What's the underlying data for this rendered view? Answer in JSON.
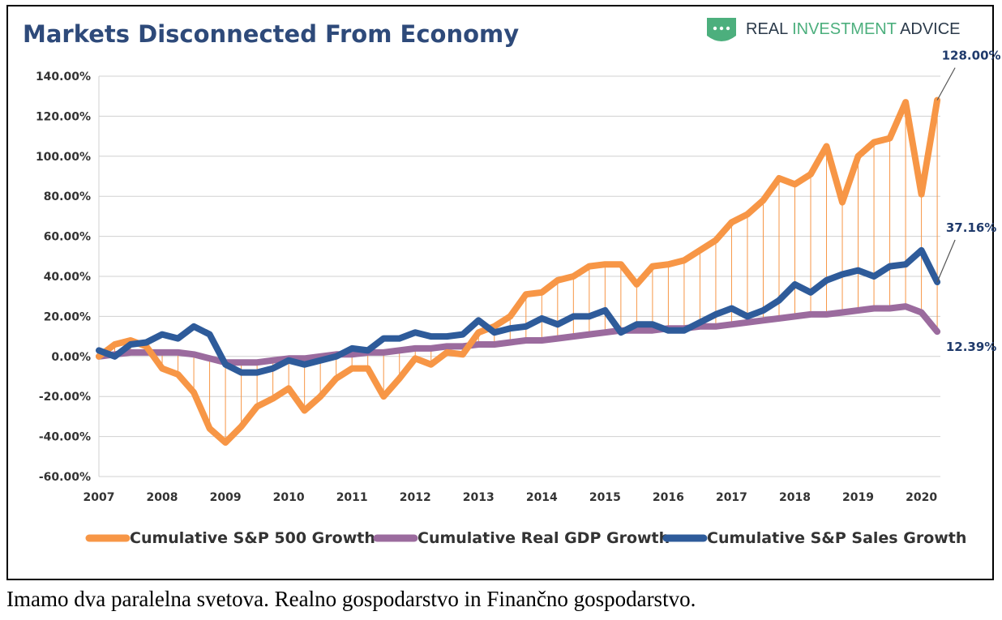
{
  "brand": {
    "name_part1": "REAL ",
    "name_part2": "INVESTMENT",
    "name_part3": " ADVICE",
    "logo_icon": "shield-dots-icon",
    "colors": {
      "dark": "#2b3a4a",
      "green": "#4caf7d"
    }
  },
  "caption": "Imamo dva paralelna svetova. Realno gospodarstvo in Finančno gospodarstvo.",
  "chart_data": {
    "type": "line",
    "title": "Markets Disconnected From Economy",
    "xlabel": "",
    "ylabel": "",
    "ylim": [
      -60,
      140
    ],
    "y_ticks": [
      "140.00%",
      "120.00%",
      "100.00%",
      "80.00%",
      "60.00%",
      "40.00%",
      "20.00%",
      "0.00%",
      "-20.00%",
      "-40.00%",
      "-60.00%"
    ],
    "x_range": [
      2007,
      2020.3
    ],
    "x_ticks": [
      "2007",
      "2008",
      "2009",
      "2010",
      "2011",
      "2012",
      "2013",
      "2014",
      "2015",
      "2016",
      "2017",
      "2018",
      "2019",
      "2020"
    ],
    "grid": true,
    "legend_position": "bottom",
    "annotations": [
      "128.00%",
      "37.16%",
      "12.39%"
    ],
    "series": [
      {
        "name": "Cumulative S&P 500 Growth",
        "color": "#f79646",
        "x": [
          2007,
          2007.25,
          2007.5,
          2007.75,
          2008,
          2008.25,
          2008.5,
          2008.75,
          2009,
          2009.25,
          2009.5,
          2009.75,
          2010,
          2010.25,
          2010.5,
          2010.75,
          2011,
          2011.25,
          2011.5,
          2011.75,
          2012,
          2012.25,
          2012.5,
          2012.75,
          2013,
          2013.25,
          2013.5,
          2013.75,
          2014,
          2014.25,
          2014.5,
          2014.75,
          2015,
          2015.25,
          2015.5,
          2015.75,
          2016,
          2016.25,
          2016.5,
          2016.75,
          2017,
          2017.25,
          2017.5,
          2017.75,
          2018,
          2018.25,
          2018.5,
          2018.75,
          2019,
          2019.25,
          2019.5,
          2019.75,
          2020,
          2020.25
        ],
        "values": [
          0,
          6,
          8,
          5,
          -6,
          -9,
          -18,
          -36,
          -43,
          -35,
          -25,
          -21,
          -16,
          -27,
          -20,
          -11,
          -6,
          -6,
          -20,
          -11,
          -1,
          -4,
          2,
          1,
          12,
          15,
          20,
          31,
          32,
          38,
          40,
          45,
          46,
          46,
          36,
          45,
          46,
          48,
          53,
          58,
          67,
          71,
          78,
          89,
          86,
          91,
          105,
          77,
          100,
          107,
          109,
          127,
          81,
          128
        ]
      },
      {
        "name": "Cumulative Real GDP Growth",
        "color": "#9b6b9e",
        "x": [
          2007,
          2007.25,
          2007.5,
          2007.75,
          2008,
          2008.25,
          2008.5,
          2008.75,
          2009,
          2009.25,
          2009.5,
          2009.75,
          2010,
          2010.25,
          2010.5,
          2010.75,
          2011,
          2011.25,
          2011.5,
          2011.75,
          2012,
          2012.25,
          2012.5,
          2012.75,
          2013,
          2013.25,
          2013.5,
          2013.75,
          2014,
          2014.25,
          2014.5,
          2014.75,
          2015,
          2015.25,
          2015.5,
          2015.75,
          2016,
          2016.25,
          2016.5,
          2016.75,
          2017,
          2017.25,
          2017.5,
          2017.75,
          2018,
          2018.25,
          2018.5,
          2018.75,
          2019,
          2019.25,
          2019.5,
          2019.75,
          2020,
          2020.25
        ],
        "values": [
          0,
          1,
          2,
          2,
          2,
          2,
          1,
          -1,
          -3,
          -3,
          -3,
          -2,
          -1,
          -1,
          0,
          1,
          1,
          2,
          2,
          3,
          4,
          4,
          5,
          5,
          6,
          6,
          7,
          8,
          8,
          9,
          10,
          11,
          12,
          13,
          13,
          13,
          14,
          14,
          15,
          15,
          16,
          17,
          18,
          19,
          20,
          21,
          21,
          22,
          23,
          24,
          24,
          25,
          22,
          12.39
        ]
      },
      {
        "name": "Cumulative S&P Sales Growth",
        "color": "#2e5b9a",
        "x": [
          2007,
          2007.25,
          2007.5,
          2007.75,
          2008,
          2008.25,
          2008.5,
          2008.75,
          2009,
          2009.25,
          2009.5,
          2009.75,
          2010,
          2010.25,
          2010.5,
          2010.75,
          2011,
          2011.25,
          2011.5,
          2011.75,
          2012,
          2012.25,
          2012.5,
          2012.75,
          2013,
          2013.25,
          2013.5,
          2013.75,
          2014,
          2014.25,
          2014.5,
          2014.75,
          2015,
          2015.25,
          2015.5,
          2015.75,
          2016,
          2016.25,
          2016.5,
          2016.75,
          2017,
          2017.25,
          2017.5,
          2017.75,
          2018,
          2018.25,
          2018.5,
          2018.75,
          2019,
          2019.25,
          2019.5,
          2019.75,
          2020,
          2020.25
        ],
        "values": [
          3,
          0,
          6,
          7,
          11,
          9,
          15,
          11,
          -4,
          -8,
          -8,
          -6,
          -2,
          -4,
          -2,
          0,
          4,
          3,
          9,
          9,
          12,
          10,
          10,
          11,
          18,
          12,
          14,
          15,
          19,
          16,
          20,
          20,
          23,
          12,
          16,
          16,
          13,
          13,
          17,
          21,
          24,
          20,
          23,
          28,
          36,
          32,
          38,
          41,
          43,
          40,
          45,
          46,
          53,
          37.16
        ]
      }
    ]
  }
}
